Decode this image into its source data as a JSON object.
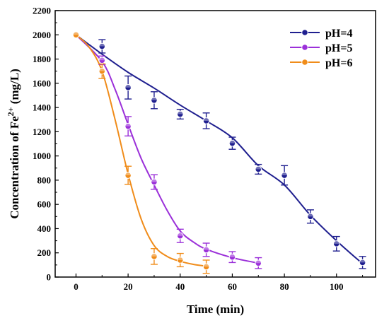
{
  "chart_data": {
    "type": "scatter",
    "x_label": "Time (min)",
    "y_label_main": "Concentration of Fe",
    "y_label_sup": "2+",
    "y_label_tail": " (mg/L)",
    "xlim": [
      -8,
      115
    ],
    "ylim": [
      0,
      2200
    ],
    "x_ticks": [
      0,
      20,
      40,
      60,
      80,
      100
    ],
    "y_ticks": [
      0,
      200,
      400,
      600,
      800,
      1000,
      1200,
      1400,
      1600,
      1800,
      2000,
      2200
    ],
    "grid": false,
    "legend_position": "top-right",
    "series": [
      {
        "name": "pH=4",
        "color": "#1f1f8f",
        "points": [
          {
            "x": 0,
            "y": 2000,
            "err": 0
          },
          {
            "x": 10,
            "y": 1905,
            "err": 55
          },
          {
            "x": 20,
            "y": 1565,
            "err": 95
          },
          {
            "x": 30,
            "y": 1460,
            "err": 70
          },
          {
            "x": 40,
            "y": 1345,
            "err": 40
          },
          {
            "x": 50,
            "y": 1290,
            "err": 65
          },
          {
            "x": 60,
            "y": 1105,
            "err": 50
          },
          {
            "x": 70,
            "y": 890,
            "err": 40
          },
          {
            "x": 80,
            "y": 840,
            "err": 80
          },
          {
            "x": 90,
            "y": 500,
            "err": 55
          },
          {
            "x": 100,
            "y": 275,
            "err": 60
          },
          {
            "x": 110,
            "y": 120,
            "err": 50
          }
        ],
        "fit": [
          [
            0,
            2000
          ],
          [
            10,
            1840
          ],
          [
            20,
            1690
          ],
          [
            30,
            1560
          ],
          [
            40,
            1420
          ],
          [
            50,
            1290
          ],
          [
            60,
            1150
          ],
          [
            70,
            920
          ],
          [
            80,
            760
          ],
          [
            90,
            510
          ],
          [
            100,
            300
          ],
          [
            110,
            110
          ]
        ]
      },
      {
        "name": "pH=5",
        "color": "#9b30d9",
        "points": [
          {
            "x": 0,
            "y": 2000,
            "err": 0
          },
          {
            "x": 10,
            "y": 1790,
            "err": 35
          },
          {
            "x": 20,
            "y": 1245,
            "err": 80
          },
          {
            "x": 30,
            "y": 785,
            "err": 60
          },
          {
            "x": 40,
            "y": 340,
            "err": 55
          },
          {
            "x": 50,
            "y": 225,
            "err": 55
          },
          {
            "x": 60,
            "y": 165,
            "err": 45
          },
          {
            "x": 70,
            "y": 115,
            "err": 45
          }
        ],
        "fit": [
          [
            0,
            2000
          ],
          [
            10,
            1780
          ],
          [
            15,
            1550
          ],
          [
            20,
            1260
          ],
          [
            25,
            980
          ],
          [
            30,
            760
          ],
          [
            35,
            550
          ],
          [
            40,
            380
          ],
          [
            45,
            290
          ],
          [
            50,
            230
          ],
          [
            60,
            160
          ],
          [
            70,
            115
          ]
        ]
      },
      {
        "name": "pH=6",
        "color": "#f08c1a",
        "points": [
          {
            "x": 0,
            "y": 2000,
            "err": 0
          },
          {
            "x": 10,
            "y": 1700,
            "err": 60
          },
          {
            "x": 20,
            "y": 840,
            "err": 75
          },
          {
            "x": 30,
            "y": 170,
            "err": 65
          },
          {
            "x": 40,
            "y": 140,
            "err": 55
          },
          {
            "x": 50,
            "y": 85,
            "err": 55
          }
        ],
        "fit": [
          [
            0,
            2000
          ],
          [
            5,
            1900
          ],
          [
            10,
            1700
          ],
          [
            15,
            1300
          ],
          [
            20,
            850
          ],
          [
            25,
            480
          ],
          [
            30,
            260
          ],
          [
            35,
            170
          ],
          [
            40,
            130
          ],
          [
            45,
            105
          ],
          [
            50,
            90
          ]
        ]
      }
    ]
  }
}
